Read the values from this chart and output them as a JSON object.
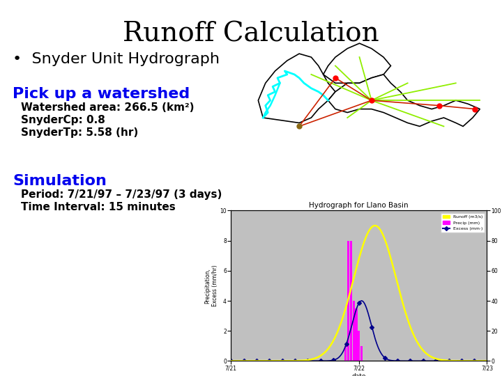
{
  "title": "Runoff Calculation",
  "title_fontsize": 28,
  "title_fontfamily": "serif",
  "bullet_text": "Snyder Unit Hydrograph",
  "bullet_fontsize": 16,
  "section1_title": "Pick up a watershed",
  "section1_color": "#0000EE",
  "section1_fontsize": 16,
  "section1_details": [
    "Watershed area: 266.5 (km²)",
    "SnyderCp: 0.8",
    "SnyderTp: 5.58 (hr)"
  ],
  "section1_detail_fontsize": 11,
  "section2_title": "Simulation",
  "section2_color": "#0000EE",
  "section2_fontsize": 16,
  "section2_details": [
    "Period: 7/21/97 – 7/23/97 (3 days)",
    "Time Interval: 15 minutes"
  ],
  "section2_detail_fontsize": 11,
  "background_color": "#ffffff"
}
